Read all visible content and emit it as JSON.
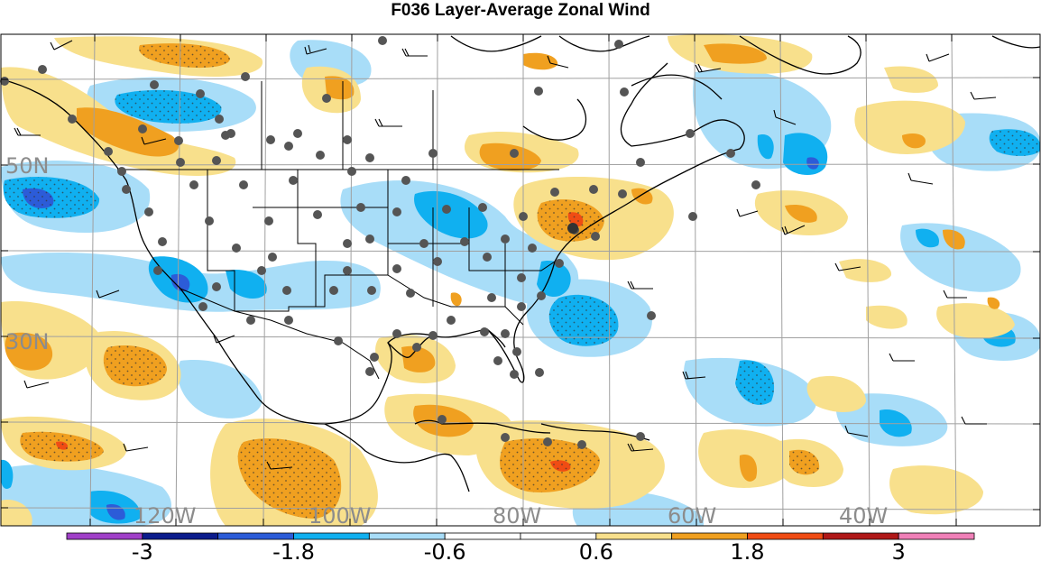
{
  "title": "F036 Layer-Average Zonal Wind",
  "lat_labels": [
    "50N",
    "30N"
  ],
  "lon_labels": [
    "120W",
    "100W",
    "80W",
    "60W",
    "40W"
  ],
  "colorbar": {
    "colors": [
      "#a040c8",
      "#0c1c8c",
      "#2c5cd8",
      "#10b0f0",
      "#a8ddf8",
      "#ffffff",
      "#ffffff",
      "#f8e08c",
      "#f0a020",
      "#f04c14",
      "#b01818",
      "#f080b8"
    ],
    "labels": [
      "-3",
      "-1.8",
      "-0.6",
      "0.6",
      "1.8",
      "3"
    ]
  },
  "colors": {
    "light_blue": "#a8ddf8",
    "medium_blue": "#10b0f0",
    "dark_blue": "#2c5cd8",
    "light_orange": "#f8e08c",
    "orange": "#f0a020",
    "red": "#f04c14",
    "station": "#555555"
  },
  "icons": [
    "station-dot-icon",
    "wind-barb-icon"
  ]
}
